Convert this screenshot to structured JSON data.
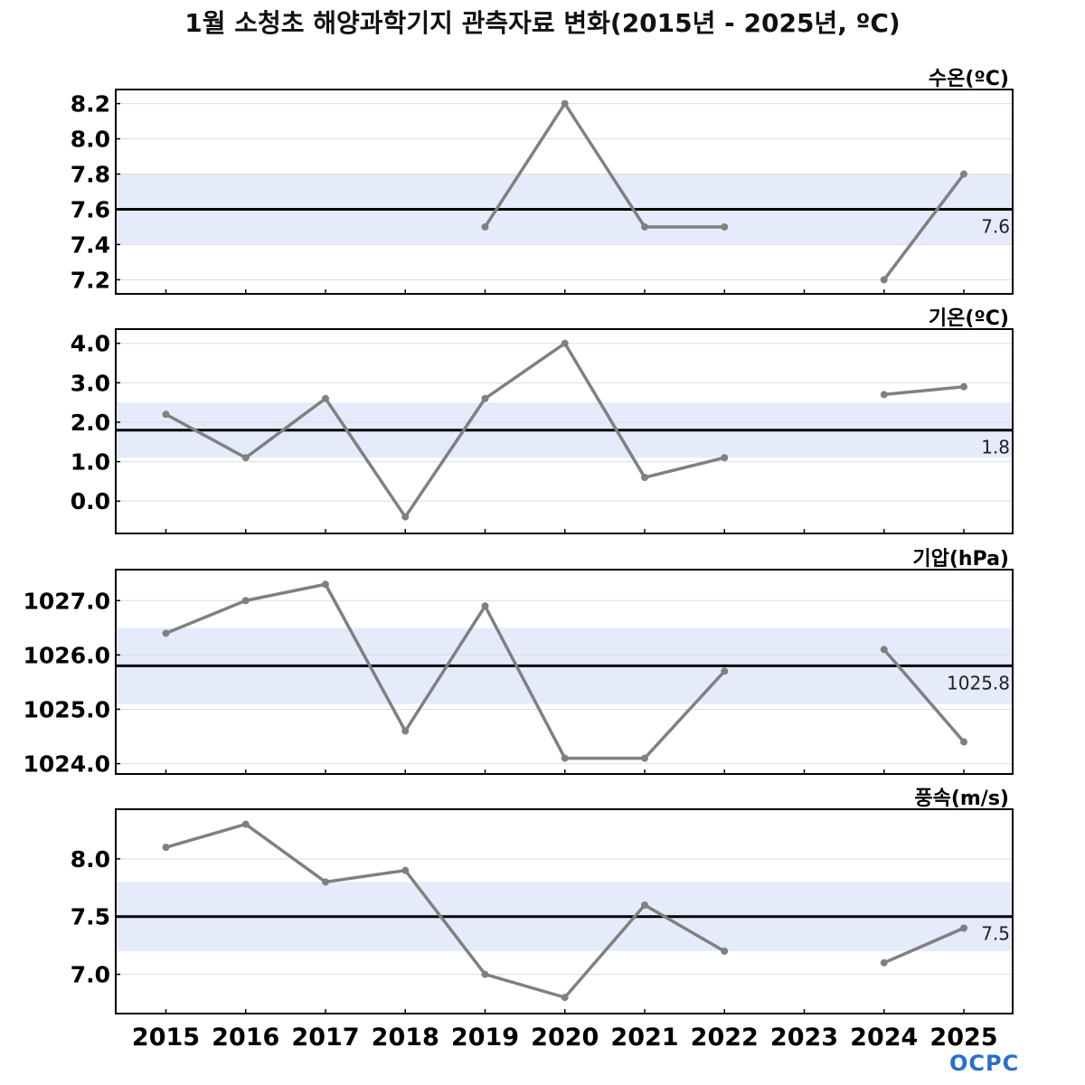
{
  "title": "1월 소청초 해양과학기지 관측자료 변화(2015년 - 2025년, ºC)",
  "logo_text": "OCPC",
  "colors": {
    "line": "#808080",
    "point": "#808080",
    "mean_line": "#000000",
    "band": "#e6ebfc",
    "grid": "#dddddd",
    "axis": "#000000"
  },
  "chart_data": [
    {
      "type": "line",
      "label": "수온(ºC)",
      "x": [
        2015,
        2016,
        2017,
        2018,
        2019,
        2020,
        2021,
        2022,
        2023,
        2024,
        2025
      ],
      "values": [
        null,
        null,
        null,
        null,
        7.5,
        8.2,
        7.5,
        7.5,
        null,
        7.2,
        7.8
      ],
      "mean": 7.6,
      "mean_label": "7.6",
      "band": [
        7.4,
        7.8
      ],
      "ylim": [
        7.12,
        8.28
      ],
      "yticks": [
        7.2,
        7.4,
        7.6,
        7.8,
        8.0,
        8.2
      ],
      "ytick_labels": [
        "7.2",
        "7.4",
        "7.6",
        "7.8",
        "8.0",
        "8.2"
      ],
      "grid": true
    },
    {
      "type": "line",
      "label": "기온(ºC)",
      "x": [
        2015,
        2016,
        2017,
        2018,
        2019,
        2020,
        2021,
        2022,
        2023,
        2024,
        2025
      ],
      "values": [
        2.2,
        1.1,
        2.6,
        -0.4,
        2.6,
        4.0,
        0.6,
        1.1,
        null,
        2.7,
        2.9
      ],
      "mean": 1.8,
      "mean_label": "1.8",
      "band": [
        1.1,
        2.5
      ],
      "ylim": [
        -0.82,
        4.36
      ],
      "yticks": [
        0.0,
        1.0,
        2.0,
        3.0,
        4.0
      ],
      "ytick_labels": [
        "0.0",
        "1.0",
        "2.0",
        "3.0",
        "4.0"
      ],
      "grid": true
    },
    {
      "type": "line",
      "label": "기압(hPa)",
      "x": [
        2015,
        2016,
        2017,
        2018,
        2019,
        2020,
        2021,
        2022,
        2023,
        2024,
        2025
      ],
      "values": [
        1026.4,
        1027.0,
        1027.3,
        1024.6,
        1026.9,
        1024.1,
        1024.1,
        1025.7,
        null,
        1026.1,
        1024.4
      ],
      "mean": 1025.8,
      "mean_label": "1025.8",
      "band": [
        1025.1,
        1026.5
      ],
      "ylim": [
        1023.81,
        1027.57
      ],
      "yticks": [
        1024.0,
        1025.0,
        1026.0,
        1027.0
      ],
      "ytick_labels": [
        "1024.0",
        "1025.0",
        "1026.0",
        "1027.0"
      ],
      "grid": true
    },
    {
      "type": "line",
      "label": "풍속(m/s)",
      "x": [
        2015,
        2016,
        2017,
        2018,
        2019,
        2020,
        2021,
        2022,
        2023,
        2024,
        2025
      ],
      "values": [
        8.1,
        8.3,
        7.8,
        7.9,
        7.0,
        6.8,
        7.6,
        7.2,
        null,
        7.1,
        7.4
      ],
      "mean": 7.5,
      "mean_label": "7.5",
      "band": [
        7.2,
        7.8
      ],
      "ylim": [
        6.66,
        8.43
      ],
      "yticks": [
        7.0,
        7.5,
        8.0
      ],
      "ytick_labels": [
        "7.0",
        "7.5",
        "8.0"
      ],
      "grid": true
    }
  ],
  "x_tick_labels": [
    "2015",
    "2016",
    "2017",
    "2018",
    "2019",
    "2020",
    "2021",
    "2022",
    "2023",
    "2024",
    "2025"
  ]
}
